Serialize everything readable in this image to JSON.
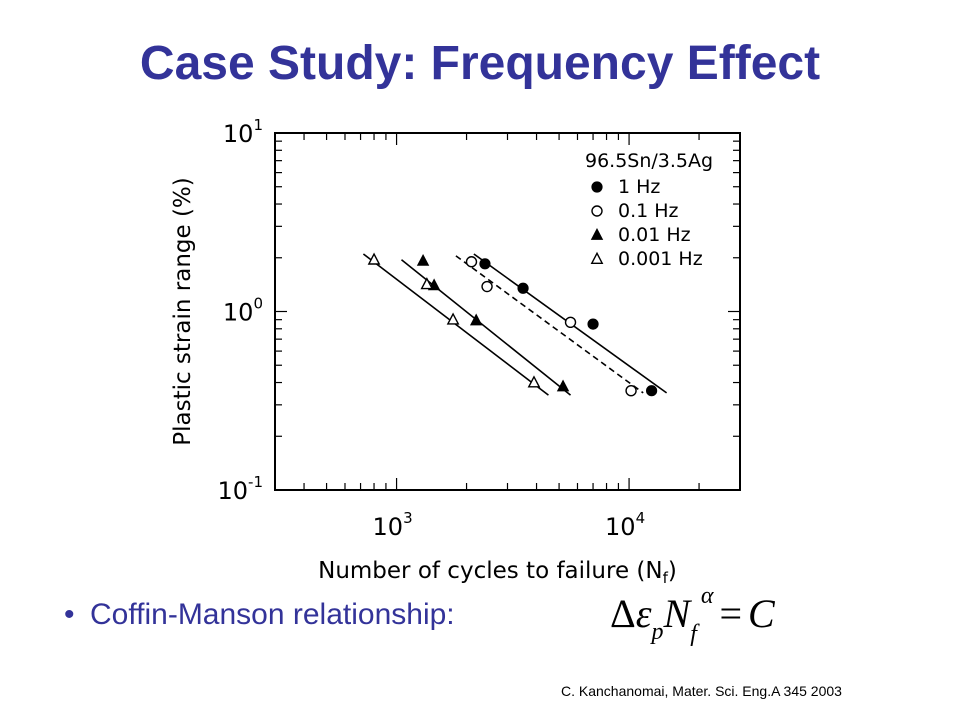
{
  "slide": {
    "title": "Case Study: Frequency Effect",
    "bullet_marker": "•",
    "bullet_text": "Coffin-Manson relationship:",
    "formula": {
      "delta": "Δ",
      "epsilon": "ε",
      "p": "p",
      "N": "N",
      "f": "f",
      "alpha": "α",
      "equals": "=",
      "C": "C"
    },
    "citation": "C. Kanchanomai, Mater. Sci. Eng.A 345 2003"
  },
  "chart_data": {
    "type": "scatter",
    "title": "",
    "xlabel": "Number of cycles to failure (N",
    "xlabel_sub": "f",
    "xlabel_close": ")",
    "ylabel": "Plastic strain range (%)",
    "x_scale": "log",
    "y_scale": "log",
    "xlim": [
      300,
      30000
    ],
    "ylim": [
      0.1,
      10
    ],
    "x_ticks": [
      {
        "base": "10",
        "exp": "3",
        "value": 1000
      },
      {
        "base": "10",
        "exp": "4",
        "value": 10000
      }
    ],
    "y_ticks": [
      {
        "base": "10",
        "exp": "1",
        "value": 10
      },
      {
        "base": "10",
        "exp": "0",
        "value": 1
      },
      {
        "base": "10",
        "exp": "-1",
        "value": 0.1
      }
    ],
    "grid": false,
    "legend_title": "96.5Sn/3.5Ag",
    "legend_position": "top-right",
    "series": [
      {
        "name": "1 Hz",
        "marker": "filled-circle",
        "line": "solid",
        "points": [
          {
            "x": 2400,
            "y": 1.85
          },
          {
            "x": 3500,
            "y": 1.35
          },
          {
            "x": 7000,
            "y": 0.85
          },
          {
            "x": 12500,
            "y": 0.36
          }
        ],
        "fit": [
          {
            "x": 2150,
            "y": 2.1
          },
          {
            "x": 14500,
            "y": 0.35
          }
        ]
      },
      {
        "name": "0.1 Hz",
        "marker": "open-circle",
        "line": "dashed",
        "points": [
          {
            "x": 2100,
            "y": 1.9
          },
          {
            "x": 2450,
            "y": 1.38
          },
          {
            "x": 5600,
            "y": 0.87
          },
          {
            "x": 10200,
            "y": 0.36
          }
        ],
        "fit": [
          {
            "x": 1800,
            "y": 2.05
          },
          {
            "x": 11500,
            "y": 0.35
          }
        ]
      },
      {
        "name": "0.01 Hz",
        "marker": "filled-triangle",
        "line": "solid",
        "points": [
          {
            "x": 1300,
            "y": 1.92
          },
          {
            "x": 1450,
            "y": 1.4
          },
          {
            "x": 2200,
            "y": 0.89
          },
          {
            "x": 5200,
            "y": 0.38
          }
        ],
        "fit": [
          {
            "x": 1050,
            "y": 1.95
          },
          {
            "x": 5600,
            "y": 0.34
          }
        ]
      },
      {
        "name": "0.001 Hz",
        "marker": "open-triangle",
        "line": "solid",
        "points": [
          {
            "x": 800,
            "y": 1.95
          },
          {
            "x": 1350,
            "y": 1.42
          },
          {
            "x": 1750,
            "y": 0.9
          },
          {
            "x": 3900,
            "y": 0.4
          }
        ],
        "fit": [
          {
            "x": 720,
            "y": 2.1
          },
          {
            "x": 4500,
            "y": 0.34
          }
        ]
      }
    ],
    "colors": {
      "ink": "#000000",
      "paper": "#ffffff"
    }
  }
}
